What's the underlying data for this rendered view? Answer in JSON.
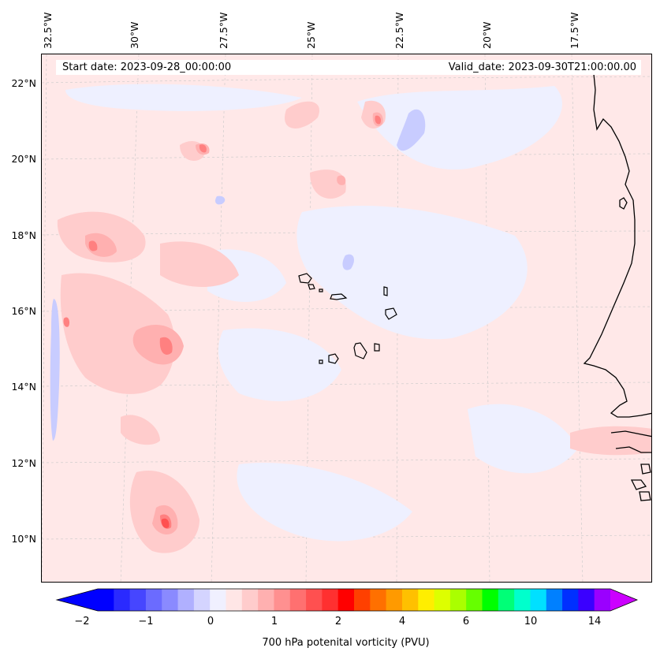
{
  "header": {
    "start_date": "Start date: 2023-09-28_00:00:00",
    "valid_date": "Valid_date: 2023-09-30T21:00:00.00"
  },
  "axes": {
    "lon_labels": [
      "32.5°W",
      "30°W",
      "27.5°W",
      "25°W",
      "22.5°W",
      "20°W",
      "17.5°W"
    ],
    "lat_labels": [
      "22°N",
      "20°N",
      "18°N",
      "16°N",
      "14°N",
      "12°N",
      "10°N"
    ]
  },
  "colorbar": {
    "title": "700 hPa potenital vorticity (PVU)",
    "tick_labels": [
      "−2",
      "−1",
      "0",
      "1",
      "2",
      "4",
      "6",
      "10",
      "14"
    ],
    "colors": [
      "#0000ff",
      "#2a2aff",
      "#4646ff",
      "#6b6bff",
      "#8a8aff",
      "#b0b0ff",
      "#d4d4ff",
      "#f0f0ff",
      "#ffe6e6",
      "#ffcccc",
      "#ffb0b0",
      "#ff9090",
      "#ff7070",
      "#ff5050",
      "#ff3030",
      "#ff0000",
      "#ff4000",
      "#ff7000",
      "#ff9a00",
      "#ffc000",
      "#ffee00",
      "#ddff00",
      "#aaff00",
      "#66ff00",
      "#00ff00",
      "#00ff77",
      "#00ffcc",
      "#00e0ff",
      "#0080ff",
      "#0030ff",
      "#3a00ff",
      "#9a00ff"
    ],
    "under_color": "#0000ff",
    "over_color": "#cc00ff"
  },
  "map": {
    "background_color": "#ffe8e8",
    "coastline_color": "#000000"
  }
}
